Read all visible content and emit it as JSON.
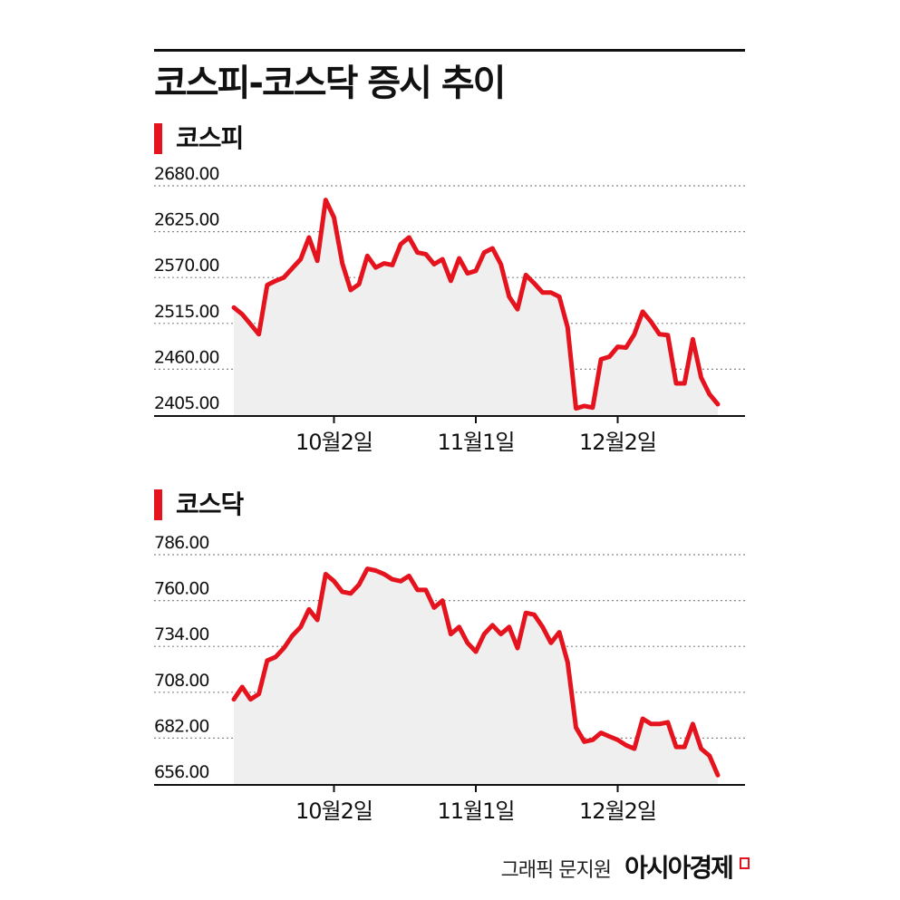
{
  "title": "코스피-코스닥 증시 추이",
  "credit": {
    "text": "그래픽 문지원",
    "brand": "아시아경제"
  },
  "colors": {
    "line": "#e5131d",
    "fill": "#efefef",
    "grid": "#888888",
    "axis": "#111111",
    "text": "#111111"
  },
  "chart_data": [
    {
      "type": "area",
      "section_label": "코스피",
      "y_ticks": [
        "2680.00",
        "2625.00",
        "2570.00",
        "2515.00",
        "2460.00",
        "2405.00"
      ],
      "ylim": [
        2405,
        2680
      ],
      "x_ticks": [
        {
          "label": "10월2일",
          "index": 12
        },
        {
          "label": "11월1일",
          "index": 29
        },
        {
          "label": "12월2일",
          "index": 46
        }
      ],
      "grid": true,
      "values": [
        2534,
        2526,
        2514,
        2502,
        2561,
        2566,
        2570,
        2581,
        2592,
        2618,
        2590,
        2663,
        2642,
        2587,
        2555,
        2562,
        2596,
        2582,
        2587,
        2585,
        2610,
        2618,
        2600,
        2598,
        2586,
        2592,
        2566,
        2593,
        2575,
        2578,
        2600,
        2605,
        2586,
        2547,
        2532,
        2573,
        2563,
        2552,
        2552,
        2547,
        2510,
        2413,
        2416,
        2414,
        2472,
        2475,
        2487,
        2486,
        2502,
        2529,
        2517,
        2502,
        2501,
        2443,
        2443,
        2496,
        2450,
        2430,
        2418
      ]
    },
    {
      "type": "area",
      "section_label": "코스닥",
      "y_ticks": [
        "786.00",
        "760.00",
        "734.00",
        "708.00",
        "682.00",
        "656.00"
      ],
      "ylim": [
        656,
        786
      ],
      "x_ticks": [
        {
          "label": "10월2일",
          "index": 12
        },
        {
          "label": "11월1일",
          "index": 29
        },
        {
          "label": "12월2일",
          "index": 46
        }
      ],
      "grid": true,
      "values": [
        704,
        711,
        704,
        707,
        726,
        728,
        733,
        740,
        745,
        755,
        749,
        775,
        771,
        765,
        764,
        769,
        778,
        777,
        775,
        772,
        771,
        774,
        766,
        766,
        756,
        760,
        741,
        745,
        736,
        731,
        741,
        746,
        741,
        745,
        733,
        753,
        752,
        745,
        736,
        742,
        725,
        688,
        680,
        681,
        685,
        683,
        681,
        678,
        676,
        693,
        690,
        690,
        691,
        677,
        677,
        690,
        676,
        672,
        661
      ]
    }
  ]
}
